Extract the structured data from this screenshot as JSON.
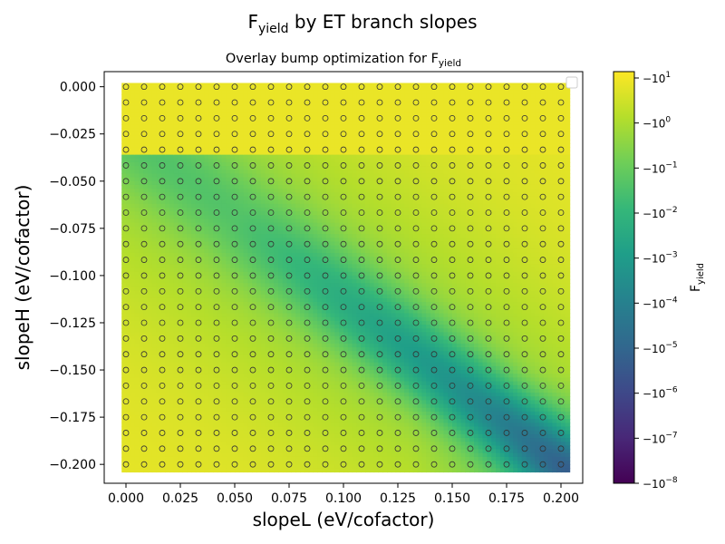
{
  "figure": {
    "suptitle_main": "F",
    "suptitle_sub": "yield",
    "suptitle_rest": " by ET branch slopes"
  },
  "chart_data": {
    "type": "heatmap",
    "title_main": "Overlay bump optimization for F",
    "title_sub": "yield",
    "xlabel": "slopeL (eV/cofactor)",
    "ylabel": "slopeH (eV/cofactor)",
    "xlim": [
      -0.01,
      0.21
    ],
    "ylim": [
      -0.21,
      0.008
    ],
    "xticks": [
      0.0,
      0.025,
      0.05,
      0.075,
      0.1,
      0.125,
      0.15,
      0.175,
      0.2
    ],
    "xtick_labels": [
      "0.000",
      "0.025",
      "0.050",
      "0.075",
      "0.100",
      "0.125",
      "0.150",
      "0.175",
      "0.200"
    ],
    "yticks": [
      0.0,
      -0.025,
      -0.05,
      -0.075,
      -0.1,
      -0.125,
      -0.15,
      -0.175,
      -0.2
    ],
    "ytick_labels": [
      "0.000",
      "−0.025",
      "−0.050",
      "−0.075",
      "−0.100",
      "−0.125",
      "−0.150",
      "−0.175",
      "−0.200"
    ],
    "x_range": [
      0.0,
      0.2
    ],
    "y_range": [
      -0.2,
      0.0
    ],
    "grid_points": {
      "nx": 25,
      "ny": 25
    },
    "marker": "open-circle",
    "valley": {
      "slopeL": [
        0.05,
        0.2
      ],
      "slopeH": [
        -0.068,
        -0.2
      ]
    },
    "legend": "top-right",
    "grid": false,
    "colorbar": {
      "label_main": "F",
      "label_sub": "yield",
      "scale": "symlog",
      "range": [
        -1e-08,
        -10
      ],
      "tick_base": [
        "−10",
        "−10",
        "−10",
        "−10",
        "−10",
        "−10",
        "−10",
        "−10",
        "−10",
        "−10"
      ],
      "tick_exponents": [
        "1",
        "0",
        "−1",
        "−2",
        "−3",
        "−4",
        "−5",
        "−6",
        "−7",
        "−8"
      ],
      "colors": [
        "#440154",
        "#482878",
        "#3e4989",
        "#31688e",
        "#26828e",
        "#1f9e89",
        "#35b779",
        "#6ece58",
        "#b5de2b",
        "#fde725"
      ]
    }
  }
}
